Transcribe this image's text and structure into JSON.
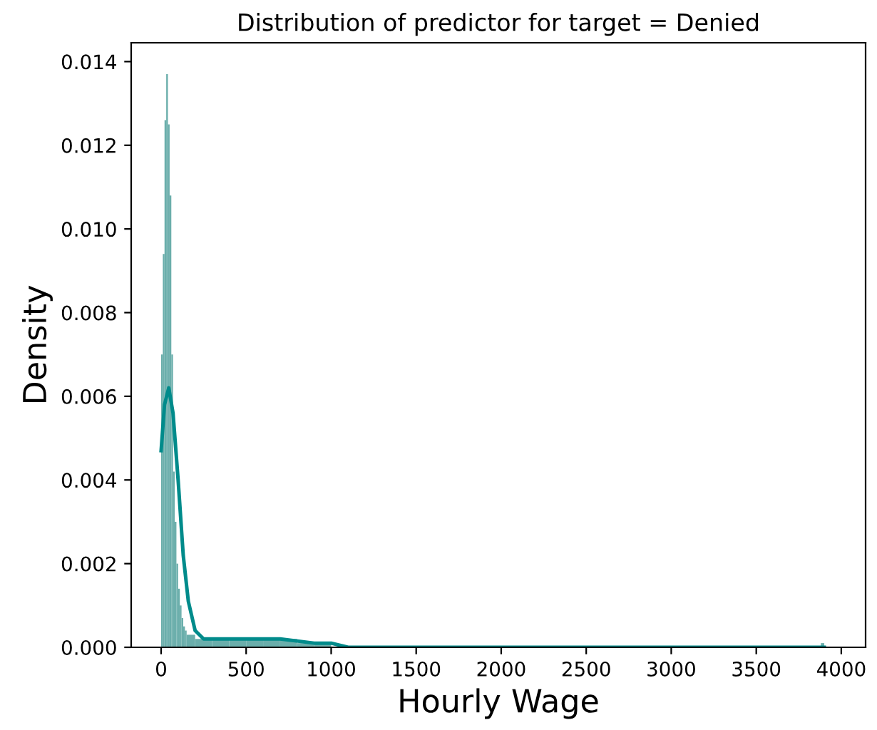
{
  "chart_data": {
    "type": "histogram",
    "title": "Distribution of predictor for target = Denied",
    "xlabel": "Hourly Wage",
    "ylabel": "Density",
    "xlim": [
      -176,
      4143
    ],
    "ylim": [
      0,
      0.01445
    ],
    "xticks": [
      0,
      500,
      1000,
      1500,
      2000,
      2500,
      3000,
      3500,
      4000
    ],
    "yticks": [
      {
        "value": 0,
        "label": "0.000"
      },
      {
        "value": 0.002,
        "label": "0.002"
      },
      {
        "value": 0.004,
        "label": "0.004"
      },
      {
        "value": 0.006,
        "label": "0.006"
      },
      {
        "value": 0.008,
        "label": "0.008"
      },
      {
        "value": 0.01,
        "label": "0.010"
      },
      {
        "value": 0.012,
        "label": "0.012"
      },
      {
        "value": 0.014,
        "label": "0.014"
      }
    ],
    "grid": false,
    "series": [
      {
        "color": "#6aaeab",
        "bins": [
          0,
          10,
          20,
          30,
          40,
          50,
          60,
          70,
          80,
          90,
          100,
          110,
          120,
          130,
          140,
          150,
          200,
          300,
          400,
          500,
          600,
          700,
          800,
          900,
          1000,
          3880,
          3900
        ],
        "values": [
          0.007,
          0.0094,
          0.0126,
          0.0137,
          0.0125,
          0.0108,
          0.007,
          0.0042,
          0.003,
          0.002,
          0.0014,
          0.001,
          0.0007,
          0.0005,
          0.0004,
          0.0003,
          0.0002,
          0.0002,
          0.0002,
          0.0002,
          0.0002,
          0.0002,
          0.0001,
          0.0001,
          0,
          0.0001
        ]
      },
      {
        "type": "line",
        "color": "#008b8b",
        "x": [
          0,
          20,
          45,
          70,
          100,
          130,
          160,
          200,
          250,
          300,
          500,
          700,
          900,
          1000,
          1100,
          1300,
          2000,
          3900
        ],
        "values": [
          0.0047,
          0.0058,
          0.0062,
          0.0056,
          0.004,
          0.0022,
          0.0011,
          0.0004,
          0.0002,
          0.0002,
          0.0002,
          0.0002,
          0.0001,
          0.0001,
          0,
          0,
          0,
          0
        ]
      }
    ]
  }
}
